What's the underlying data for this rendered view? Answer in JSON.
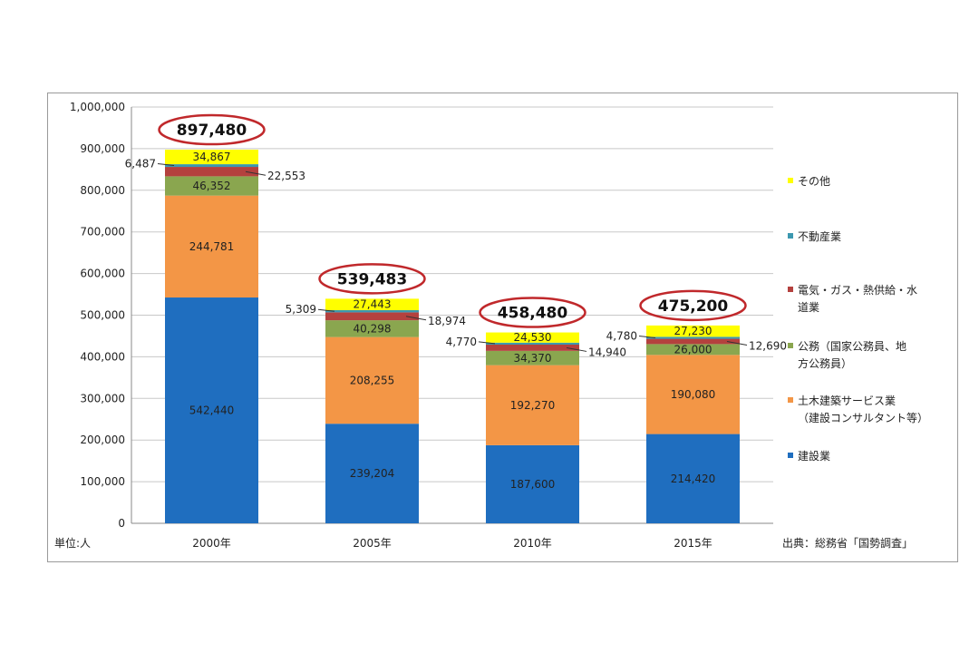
{
  "chart_data": {
    "type": "bar",
    "stacked": true,
    "categories": [
      "2000年",
      "2005年",
      "2010年",
      "2015年"
    ],
    "series": [
      {
        "name": "建設業",
        "values": [
          542440,
          239204,
          187600,
          214420
        ],
        "color": "#1f6ebf"
      },
      {
        "name": "土木建築サービス業（建設コンサルタント等）",
        "values": [
          244781,
          208255,
          192270,
          190080
        ],
        "color": "#f39646"
      },
      {
        "name": "公務（国家公務員、地方公務員）",
        "values": [
          46352,
          40298,
          34370,
          26000
        ],
        "color": "#8aa64f"
      },
      {
        "name": "電気・ガス・熱供給・水道業",
        "values": [
          22553,
          18974,
          14940,
          12690
        ],
        "color": "#b4413e"
      },
      {
        "name": "不動産業",
        "values": [
          6487,
          5309,
          4770,
          4780
        ],
        "color": "#3c98b0"
      },
      {
        "name": "その他",
        "values": [
          34867,
          27443,
          24530,
          27230
        ],
        "color": "#ffff00"
      }
    ],
    "segment_labels": [
      [
        "542,440",
        "244,781",
        "46,352",
        "22,553",
        "6,487",
        "34,867"
      ],
      [
        "239,204",
        "208,255",
        "40,298",
        "18,974",
        "5,309",
        "27,443"
      ],
      [
        "187,600",
        "192,270",
        "34,370",
        "14,940",
        "4,770",
        "24,530"
      ],
      [
        "214,420",
        "190,080",
        "26,000",
        "12,690",
        "4,780",
        "27,230"
      ]
    ],
    "totals": [
      "897,480",
      "539,483",
      "458,480",
      "475,200"
    ],
    "total_circle_color": "#c0282b",
    "y_ticks": [
      "0",
      "100,000",
      "200,000",
      "300,000",
      "400,000",
      "500,000",
      "600,000",
      "700,000",
      "800,000",
      "900,000",
      "1,000,000"
    ],
    "ylim": [
      0,
      1000000
    ],
    "grid": true,
    "unit_label": "単位:人",
    "source": "出典：総務省「国勢調査」",
    "legend": {
      "placement": "right",
      "entries": [
        {
          "lines": [
            "その他"
          ],
          "series": 5
        },
        {
          "lines": [
            "不動産業"
          ],
          "series": 4
        },
        {
          "lines": [
            "電気・ガス・熱供給・水",
            "道業"
          ],
          "series": 3
        },
        {
          "lines": [
            "公務（国家公務員、地",
            "方公務員）"
          ],
          "series": 2
        },
        {
          "lines": [
            "土木建築サービス業",
            "（建設コンサルタント等）"
          ],
          "series": 1
        },
        {
          "lines": [
            "建設業"
          ],
          "series": 0
        }
      ]
    }
  }
}
